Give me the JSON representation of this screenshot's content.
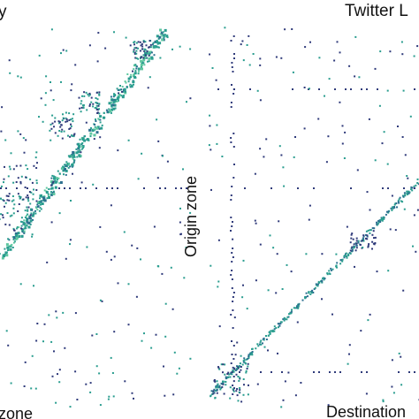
{
  "panels": {
    "left": {
      "title_fragment": "y",
      "xlabel_fragment": "zone"
    },
    "right": {
      "title_fragment": "Twitter L",
      "ylabel": "Origin zone",
      "xlabel_fragment": "Destination"
    }
  },
  "colors": {
    "dense": "#2a9d8f",
    "mid": "#2c6e8f",
    "sparse": "#2f3a7a",
    "light": "#5ec7a0"
  },
  "chart_data": [
    {
      "type": "heatmap",
      "title": "y",
      "xlabel": "zone",
      "ylabel": "",
      "description_of_values": "origin-destination flow matrix, dense diagonal",
      "diagonal": [
        [
          0.0,
          0.0
        ],
        [
          1.0,
          1.0
        ]
      ],
      "grid": false
    },
    {
      "type": "heatmap",
      "title": "Twitter L",
      "xlabel": "Destination",
      "ylabel": "Origin zone",
      "diagonal": [
        [
          0.0,
          0.0
        ],
        [
          1.0,
          1.0
        ]
      ],
      "grid": false
    }
  ]
}
